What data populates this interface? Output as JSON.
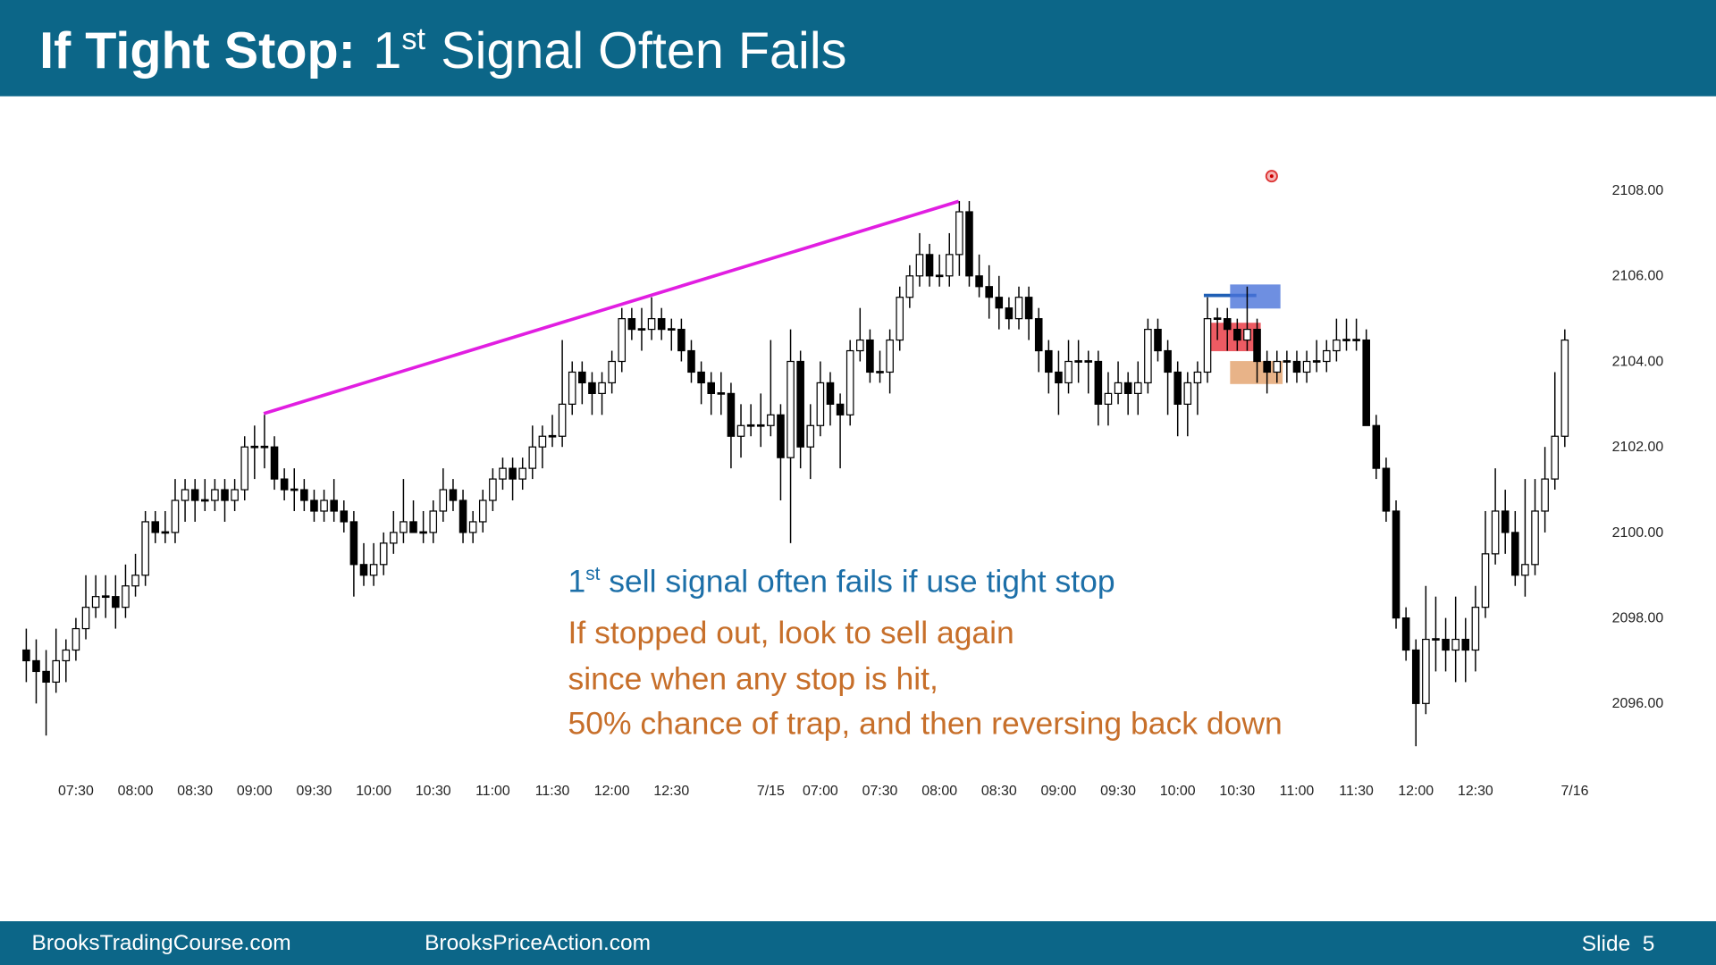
{
  "chart_data": {
    "type": "candlestick",
    "title": {
      "bold": "If Tight Stop:",
      "number": "1",
      "superscript": "st",
      "rest": "Signal Often Fails"
    },
    "annotations": {
      "blue": {
        "number": "1",
        "superscript": "st",
        "rest": "sell signal often fails if use tight stop"
      },
      "orange": [
        "If stopped out, look to sell again",
        "since when any stop is hit,",
        "50% chance of trap, and then reversing back down"
      ]
    },
    "footer": {
      "left": "BrooksTradingCourse.com",
      "center": "BrooksPriceAction.com",
      "slide": "Slide  5"
    },
    "up_color": "#ffffff",
    "down_color": "#000000",
    "grid": false,
    "ylim": [
      2094.5,
      2109.5
    ],
    "yticks": [
      {
        "value": 2096,
        "label": "2096.00"
      },
      {
        "value": 2098,
        "label": "2098.00"
      },
      {
        "value": 2100,
        "label": "2100.00"
      },
      {
        "value": 2102,
        "label": "2102.00"
      },
      {
        "value": 2104,
        "label": "2104.00"
      },
      {
        "value": 2106,
        "label": "2106.00"
      },
      {
        "value": 2108,
        "label": "2108.00"
      }
    ],
    "categories": [
      null,
      null,
      null,
      null,
      null,
      "07:30",
      null,
      null,
      null,
      null,
      null,
      "08:00",
      null,
      null,
      null,
      null,
      null,
      "08:30",
      null,
      null,
      null,
      null,
      null,
      "09:00",
      null,
      null,
      null,
      null,
      null,
      "09:30",
      null,
      null,
      null,
      null,
      null,
      "10:00",
      null,
      null,
      null,
      null,
      null,
      "10:30",
      null,
      null,
      null,
      null,
      null,
      "11:00",
      null,
      null,
      null,
      null,
      null,
      "11:30",
      null,
      null,
      null,
      null,
      null,
      "12:00",
      null,
      null,
      null,
      null,
      null,
      "12:30",
      null,
      null,
      null,
      null,
      null,
      null,
      null,
      null,
      null,
      "7/15",
      null,
      null,
      null,
      null,
      "07:00",
      null,
      null,
      null,
      null,
      null,
      "07:30",
      null,
      null,
      null,
      null,
      null,
      "08:00",
      null,
      null,
      null,
      null,
      null,
      "08:30",
      null,
      null,
      null,
      null,
      null,
      "09:00",
      null,
      null,
      null,
      null,
      null,
      "09:30",
      null,
      null,
      null,
      null,
      null,
      "10:00",
      null,
      null,
      null,
      null,
      null,
      "10:30",
      null,
      null,
      null,
      null,
      null,
      "11:00",
      null,
      null,
      null,
      null,
      null,
      "11:30",
      null,
      null,
      null,
      null,
      null,
      "12:00",
      null,
      null,
      null,
      null,
      null,
      "12:30",
      null,
      null,
      null,
      null,
      null,
      null,
      null,
      null,
      null,
      "7/16"
    ],
    "candles": [
      [
        2097.25,
        2097.75,
        2096.5,
        2097
      ],
      [
        2097,
        2097.5,
        2096,
        2096.75
      ],
      [
        2096.75,
        2097.25,
        2095.25,
        2096.5
      ],
      [
        2096.5,
        2097.75,
        2096.25,
        2097
      ],
      [
        2097,
        2097.5,
        2096.5,
        2097.25
      ],
      [
        2097.25,
        2098,
        2097,
        2097.75
      ],
      [
        2097.75,
        2099,
        2097.5,
        2098.25
      ],
      [
        2098.25,
        2099,
        2098,
        2098.5
      ],
      [
        2098.5,
        2099,
        2098,
        2098.5
      ],
      [
        2098.5,
        2099,
        2097.75,
        2098.25
      ],
      [
        2098.25,
        2099.25,
        2098,
        2098.75
      ],
      [
        2098.75,
        2099.5,
        2098.5,
        2099
      ],
      [
        2099,
        2100.5,
        2098.75,
        2100.25
      ],
      [
        2100.25,
        2100.5,
        2099.75,
        2100
      ],
      [
        2100,
        2100.5,
        2099.75,
        2100
      ],
      [
        2100,
        2101.25,
        2099.75,
        2100.75
      ],
      [
        2100.75,
        2101.25,
        2100.25,
        2101
      ],
      [
        2101,
        2101.25,
        2100.25,
        2100.75
      ],
      [
        2100.75,
        2101.25,
        2100.5,
        2100.75
      ],
      [
        2100.75,
        2101.25,
        2100.5,
        2101
      ],
      [
        2101,
        2101.25,
        2100.25,
        2100.75
      ],
      [
        2100.75,
        2101.25,
        2100.5,
        2101
      ],
      [
        2101,
        2102.25,
        2100.75,
        2102
      ],
      [
        2102,
        2102.5,
        2101.25,
        2102
      ],
      [
        2102,
        2102.75,
        2101.5,
        2102
      ],
      [
        2102,
        2102.25,
        2101,
        2101.25
      ],
      [
        2101.25,
        2101.5,
        2100.75,
        2101
      ],
      [
        2101,
        2101.5,
        2100.5,
        2101
      ],
      [
        2101,
        2101.25,
        2100.5,
        2100.75
      ],
      [
        2100.75,
        2101,
        2100.25,
        2100.5
      ],
      [
        2100.5,
        2101,
        2100.25,
        2100.75
      ],
      [
        2100.75,
        2101.25,
        2100.25,
        2100.5
      ],
      [
        2100.5,
        2100.75,
        2100,
        2100.25
      ],
      [
        2100.25,
        2100.5,
        2098.5,
        2099.25
      ],
      [
        2099.25,
        2099.75,
        2098.75,
        2099
      ],
      [
        2099,
        2099.75,
        2098.75,
        2099.25
      ],
      [
        2099.25,
        2100,
        2099,
        2099.75
      ],
      [
        2099.75,
        2100.5,
        2099.5,
        2100
      ],
      [
        2100,
        2101.25,
        2099.75,
        2100.25
      ],
      [
        2100.25,
        2100.75,
        2100,
        2100
      ],
      [
        2100,
        2100.5,
        2099.75,
        2100
      ],
      [
        2100,
        2100.75,
        2099.75,
        2100.5
      ],
      [
        2100.5,
        2101.5,
        2100.25,
        2101
      ],
      [
        2101,
        2101.25,
        2100.5,
        2100.75
      ],
      [
        2100.75,
        2101,
        2099.75,
        2100
      ],
      [
        2100,
        2100.5,
        2099.75,
        2100.25
      ],
      [
        2100.25,
        2101,
        2100,
        2100.75
      ],
      [
        2100.75,
        2101.5,
        2100.5,
        2101.25
      ],
      [
        2101.25,
        2101.75,
        2101,
        2101.5
      ],
      [
        2101.5,
        2101.75,
        2100.75,
        2101.25
      ],
      [
        2101.25,
        2101.75,
        2101,
        2101.5
      ],
      [
        2101.5,
        2102.5,
        2101.25,
        2102
      ],
      [
        2102,
        2102.5,
        2101.5,
        2102.25
      ],
      [
        2102.25,
        2102.75,
        2102,
        2102.25
      ],
      [
        2102.25,
        2104.5,
        2102,
        2103
      ],
      [
        2103,
        2104,
        2102.75,
        2103.75
      ],
      [
        2103.75,
        2104,
        2103,
        2103.5
      ],
      [
        2103.5,
        2103.75,
        2102.75,
        2103.25
      ],
      [
        2103.25,
        2103.75,
        2102.75,
        2103.5
      ],
      [
        2103.5,
        2104.25,
        2103.25,
        2104
      ],
      [
        2104,
        2105.25,
        2103.75,
        2105
      ],
      [
        2105,
        2105.25,
        2104.5,
        2104.75
      ],
      [
        2104.75,
        2105.25,
        2104.25,
        2104.75
      ],
      [
        2104.75,
        2105.5,
        2104.5,
        2105
      ],
      [
        2105,
        2105.25,
        2104.5,
        2104.75
      ],
      [
        2104.75,
        2105,
        2104.25,
        2104.75
      ],
      [
        2104.75,
        2105,
        2104,
        2104.25
      ],
      [
        2104.25,
        2104.5,
        2103.5,
        2103.75
      ],
      [
        2103.75,
        2104,
        2103,
        2103.5
      ],
      [
        2103.5,
        2103.75,
        2102.75,
        2103.25
      ],
      [
        2103.25,
        2103.75,
        2102.75,
        2103.25
      ],
      [
        2103.25,
        2103.5,
        2101.5,
        2102.25
      ],
      [
        2102.25,
        2103,
        2101.75,
        2102.5
      ],
      [
        2102.5,
        2103,
        2102.25,
        2102.5
      ],
      [
        2102.5,
        2103.25,
        2102,
        2102.5
      ],
      [
        2102.5,
        2104.5,
        2102.25,
        2102.75
      ],
      [
        2102.75,
        2103,
        2100.75,
        2101.75
      ],
      [
        2101.75,
        2104.75,
        2099.75,
        2104
      ],
      [
        2104,
        2104.25,
        2101.5,
        2102
      ],
      [
        2102,
        2103,
        2101.25,
        2102.5
      ],
      [
        2102.5,
        2104,
        2102.25,
        2103.5
      ],
      [
        2103.5,
        2103.75,
        2102.5,
        2103
      ],
      [
        2103,
        2103.25,
        2101.5,
        2102.75
      ],
      [
        2102.75,
        2104.5,
        2102.5,
        2104.25
      ],
      [
        2104.25,
        2105.25,
        2104,
        2104.5
      ],
      [
        2104.5,
        2104.75,
        2103.5,
        2103.75
      ],
      [
        2103.75,
        2104.25,
        2103.5,
        2103.75
      ],
      [
        2103.75,
        2104.75,
        2103.25,
        2104.5
      ],
      [
        2104.5,
        2105.75,
        2104.25,
        2105.5
      ],
      [
        2105.5,
        2106.25,
        2105.25,
        2106
      ],
      [
        2106,
        2107,
        2105.75,
        2106.5
      ],
      [
        2106.5,
        2106.75,
        2105.75,
        2106
      ],
      [
        2106,
        2106.5,
        2105.75,
        2106
      ],
      [
        2106,
        2107,
        2105.75,
        2106.5
      ],
      [
        2106.5,
        2107.75,
        2106,
        2107.5
      ],
      [
        2107.5,
        2107.75,
        2105.75,
        2106
      ],
      [
        2106,
        2106.5,
        2105.5,
        2105.75
      ],
      [
        2105.75,
        2106.25,
        2105,
        2105.5
      ],
      [
        2105.5,
        2106,
        2104.75,
        2105.25
      ],
      [
        2105.25,
        2105.5,
        2104.75,
        2105
      ],
      [
        2105,
        2105.75,
        2104.75,
        2105.5
      ],
      [
        2105.5,
        2105.75,
        2104.5,
        2105
      ],
      [
        2105,
        2105.25,
        2103.75,
        2104.25
      ],
      [
        2104.25,
        2104.5,
        2103.25,
        2103.75
      ],
      [
        2103.75,
        2104.25,
        2102.75,
        2103.5
      ],
      [
        2103.5,
        2104.5,
        2103.25,
        2104
      ],
      [
        2104,
        2104.5,
        2103.5,
        2104
      ],
      [
        2104,
        2104.25,
        2103.25,
        2104
      ],
      [
        2104,
        2104.25,
        2102.5,
        2103
      ],
      [
        2103,
        2103.75,
        2102.5,
        2103.25
      ],
      [
        2103.25,
        2104,
        2103,
        2103.5
      ],
      [
        2103.5,
        2103.75,
        2102.75,
        2103.25
      ],
      [
        2103.25,
        2104,
        2102.75,
        2103.5
      ],
      [
        2103.5,
        2105,
        2103.25,
        2104.75
      ],
      [
        2104.75,
        2105,
        2104,
        2104.25
      ],
      [
        2104.25,
        2104.5,
        2102.75,
        2103.75
      ],
      [
        2103.75,
        2104,
        2102.25,
        2103
      ],
      [
        2103,
        2103.75,
        2102.25,
        2103.5
      ],
      [
        2103.5,
        2104,
        2102.75,
        2103.75
      ],
      [
        2103.75,
        2105.5,
        2103.5,
        2105
      ],
      [
        2105,
        2105.25,
        2104.5,
        2105
      ],
      [
        2105,
        2105.25,
        2104.25,
        2104.75
      ],
      [
        2104.75,
        2105,
        2104.25,
        2104.5
      ],
      [
        2104.5,
        2105.75,
        2104.25,
        2104.75
      ],
      [
        2104.75,
        2105,
        2103.5,
        2104
      ],
      [
        2104,
        2104.25,
        2103.25,
        2103.75
      ],
      [
        2103.75,
        2104.25,
        2103.5,
        2104
      ],
      [
        2104,
        2104.25,
        2103.5,
        2104
      ],
      [
        2104,
        2104.25,
        2103.5,
        2103.75
      ],
      [
        2103.75,
        2104.25,
        2103.5,
        2104
      ],
      [
        2104,
        2104.5,
        2103.75,
        2104
      ],
      [
        2104,
        2104.5,
        2103.75,
        2104.25
      ],
      [
        2104.25,
        2105,
        2104,
        2104.5
      ],
      [
        2104.5,
        2105,
        2104.25,
        2104.5
      ],
      [
        2104.5,
        2105,
        2104.25,
        2104.5
      ],
      [
        2104.5,
        2104.75,
        2102.5,
        2102.5
      ],
      [
        2102.5,
        2102.75,
        2101.25,
        2101.5
      ],
      [
        2101.5,
        2101.75,
        2100.25,
        2100.5
      ],
      [
        2100.5,
        2100.75,
        2097.75,
        2098
      ],
      [
        2098,
        2098.25,
        2097,
        2097.25
      ],
      [
        2097.25,
        2097.5,
        2095,
        2096
      ],
      [
        2096,
        2098.75,
        2095.75,
        2097.5
      ],
      [
        2097.5,
        2098.5,
        2096.75,
        2097.5
      ],
      [
        2097.5,
        2098,
        2096.75,
        2097.25
      ],
      [
        2097.25,
        2098.5,
        2096.5,
        2097.5
      ],
      [
        2097.5,
        2098,
        2096.5,
        2097.25
      ],
      [
        2097.25,
        2098.75,
        2096.75,
        2098.25
      ],
      [
        2098.25,
        2100.5,
        2098,
        2099.5
      ],
      [
        2099.5,
        2101.5,
        2099.25,
        2100.5
      ],
      [
        2100.5,
        2101,
        2099.5,
        2100
      ],
      [
        2100,
        2100.5,
        2098.75,
        2099
      ],
      [
        2099,
        2101.25,
        2098.5,
        2099.25
      ],
      [
        2099.25,
        2101.25,
        2099,
        2100.5
      ],
      [
        2100.5,
        2102,
        2100,
        2101.25
      ],
      [
        2101.25,
        2103.75,
        2101,
        2102.25
      ],
      [
        2102.25,
        2104.75,
        2102,
        2104.5
      ],
      null
    ]
  }
}
